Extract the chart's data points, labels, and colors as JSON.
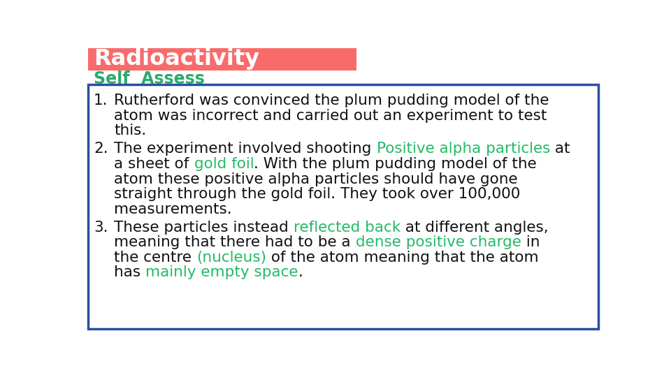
{
  "title": "Radioactivity",
  "title_bg_color": "#F96B6B",
  "title_text_color": "#FFFFFF",
  "subtitle": "Self  Assess",
  "subtitle_color": "#2AAA6A",
  "box_border_color": "#2B4FA0",
  "bg_color": "#FFFFFF",
  "highlight_green": "#22BB66",
  "highlight_gold": "#22BB55",
  "highlight_cyan": "#22CC77",
  "text_color": "#111111",
  "items": [
    {
      "number": "1.",
      "lines": [
        [
          {
            "text": "Rutherford was convinced the plum pudding model of the",
            "color": "#111111"
          }
        ],
        [
          {
            "text": "atom was incorrect and carried out an experiment to test",
            "color": "#111111"
          }
        ],
        [
          {
            "text": "this.",
            "color": "#111111"
          }
        ]
      ]
    },
    {
      "number": "2.",
      "lines": [
        [
          {
            "text": "The experiment involved shooting ",
            "color": "#111111"
          },
          {
            "text": "Positive alpha particles",
            "color": "#22BB66"
          },
          {
            "text": " at",
            "color": "#111111"
          }
        ],
        [
          {
            "text": "a sheet of ",
            "color": "#111111"
          },
          {
            "text": "gold foil",
            "color": "#22BB66"
          },
          {
            "text": ". With the plum pudding model of the",
            "color": "#111111"
          }
        ],
        [
          {
            "text": "atom these positive alpha particles should have gone",
            "color": "#111111"
          }
        ],
        [
          {
            "text": "straight through the gold foil. They took over 100,000",
            "color": "#111111"
          }
        ],
        [
          {
            "text": "measurements.",
            "color": "#111111"
          }
        ]
      ]
    },
    {
      "number": "3.",
      "lines": [
        [
          {
            "text": "These particles instead ",
            "color": "#111111"
          },
          {
            "text": "reflected back",
            "color": "#22BB66"
          },
          {
            "text": " at different angles,",
            "color": "#111111"
          }
        ],
        [
          {
            "text": "meaning that there had to be a ",
            "color": "#111111"
          },
          {
            "text": "dense positive charge",
            "color": "#22BB66"
          },
          {
            "text": " in",
            "color": "#111111"
          }
        ],
        [
          {
            "text": "the centre ",
            "color": "#111111"
          },
          {
            "text": "(nucleus)",
            "color": "#22BB66"
          },
          {
            "text": " of the atom meaning that the atom",
            "color": "#111111"
          }
        ],
        [
          {
            "text": "has ",
            "color": "#111111"
          },
          {
            "text": "mainly empty space",
            "color": "#22BB66"
          },
          {
            "text": ".",
            "color": "#111111"
          }
        ]
      ]
    }
  ]
}
